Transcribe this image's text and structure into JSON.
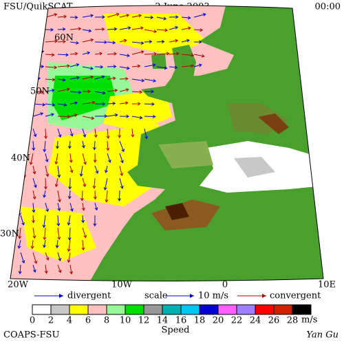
{
  "header": {
    "title": "FSU/QuikSCAT",
    "date": "2 June 2003",
    "time": "00:00"
  },
  "map": {
    "lat_labels": [
      "60N",
      "50N",
      "40N",
      "30N"
    ],
    "lon_labels": [
      "20W",
      "10W",
      "0",
      "10E"
    ]
  },
  "legend": {
    "divergent": "divergent",
    "scale": "scale",
    "scale_value": "10 m/s",
    "convergent": "convergent",
    "divergent_color": "#0000cc",
    "convergent_color": "#b00000"
  },
  "colorbar": {
    "labels": [
      0,
      2,
      4,
      6,
      8,
      10,
      12,
      14,
      16,
      18,
      20,
      22,
      24,
      26,
      28
    ],
    "colors": [
      "#ffffff",
      "#c8c8c8",
      "#ffff00",
      "#ffc0c0",
      "#98f898",
      "#00e000",
      "#989898",
      "#00b0b0",
      "#00c8f0",
      "#0000d0",
      "#ff60ff",
      "#a080ff",
      "#ff0000",
      "#d02000",
      "#000000"
    ],
    "unit": "m/s",
    "title": "Speed"
  },
  "footer": {
    "credit": "COAPS-FSU",
    "author": "Yan Gu"
  }
}
